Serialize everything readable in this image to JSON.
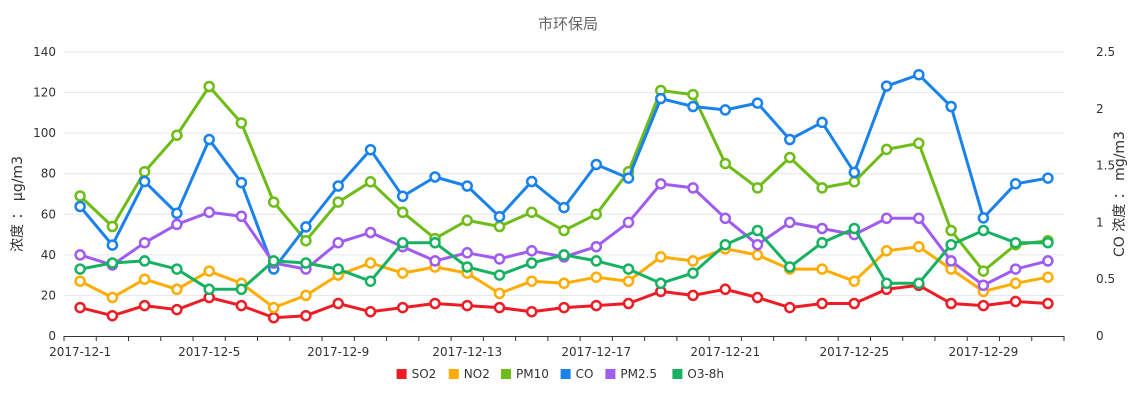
{
  "chart_data": {
    "type": "line",
    "title": "市环保局",
    "ylabel_left": "浓度 ： μg/m3",
    "ylabel_right": "CO 浓度 ： mg/m3",
    "ylim_left": [
      0,
      140
    ],
    "yticks_left": [
      0,
      20,
      40,
      60,
      80,
      100,
      120,
      140
    ],
    "ylim_right": [
      0,
      2.5
    ],
    "yticks_right": [
      "0",
      "0.5",
      "1",
      "1.5",
      "2",
      "2.5"
    ],
    "x": [
      "2017-12-1",
      "2017-12-2",
      "2017-12-3",
      "2017-12-4",
      "2017-12-5",
      "2017-12-6",
      "2017-12-7",
      "2017-12-8",
      "2017-12-9",
      "2017-12-10",
      "2017-12-11",
      "2017-12-12",
      "2017-12-13",
      "2017-12-14",
      "2017-12-15",
      "2017-12-16",
      "2017-12-17",
      "2017-12-18",
      "2017-12-19",
      "2017-12-20",
      "2017-12-21",
      "2017-12-22",
      "2017-12-23",
      "2017-12-24",
      "2017-12-25",
      "2017-12-26",
      "2017-12-27",
      "2017-12-28",
      "2017-12-29",
      "2017-12-30",
      "2017-12-31"
    ],
    "xtick_labels": [
      "2017-12-1",
      "2017-12-5",
      "2017-12-9",
      "2017-12-13",
      "2017-12-17",
      "2017-12-21",
      "2017-12-25",
      "2017-12-29"
    ],
    "grid": true,
    "legend_position": "bottom-center",
    "series": [
      {
        "name": "SO2",
        "axis": "left",
        "color": "#ee1c25",
        "values": [
          14,
          10,
          15,
          13,
          19,
          15,
          9,
          10,
          16,
          12,
          14,
          16,
          15,
          14,
          12,
          14,
          15,
          16,
          22,
          20,
          23,
          19,
          14,
          16,
          16,
          23,
          25,
          16,
          15,
          17,
          16
        ]
      },
      {
        "name": "NO2",
        "axis": "left",
        "color": "#ffac00",
        "values": [
          27,
          19,
          28,
          23,
          32,
          26,
          14,
          20,
          30,
          36,
          31,
          34,
          31,
          21,
          27,
          26,
          29,
          27,
          39,
          37,
          43,
          40,
          33,
          33,
          27,
          42,
          44,
          33,
          22,
          26,
          29
        ]
      },
      {
        "name": "PM10",
        "axis": "left",
        "color": "#6ebc18",
        "values": [
          69,
          54,
          81,
          99,
          123,
          105,
          66,
          47,
          66,
          76,
          61,
          48,
          57,
          54,
          61,
          52,
          60,
          81,
          121,
          119,
          85,
          73,
          88,
          73,
          76,
          92,
          95,
          52,
          32,
          45,
          47
        ]
      },
      {
        "name": "CO",
        "axis": "right",
        "color": "#1a82ec",
        "values": [
          1.14,
          0.8,
          1.36,
          1.08,
          1.73,
          1.35,
          0.59,
          0.96,
          1.32,
          1.64,
          1.23,
          1.4,
          1.32,
          1.05,
          1.36,
          1.13,
          1.51,
          1.39,
          2.09,
          2.02,
          1.99,
          2.05,
          1.73,
          1.88,
          1.44,
          2.2,
          2.3,
          2.02,
          1.04,
          1.34,
          1.39
        ]
      },
      {
        "name": "PM2.5",
        "axis": "left",
        "color": "#a05cf0",
        "values": [
          40,
          35,
          46,
          55,
          61,
          59,
          36,
          33,
          46,
          51,
          44,
          37,
          41,
          38,
          42,
          39,
          44,
          56,
          75,
          73,
          58,
          45,
          56,
          53,
          50,
          58,
          58,
          37,
          25,
          33,
          37
        ]
      },
      {
        "name": "O3-8h",
        "axis": "left",
        "color": "#17b261",
        "values": [
          33,
          36,
          37,
          33,
          23,
          23,
          37,
          36,
          33,
          27,
          46,
          46,
          34,
          30,
          36,
          40,
          37,
          33,
          26,
          31,
          45,
          52,
          34,
          46,
          53,
          26,
          26,
          45,
          52,
          46,
          46
        ]
      }
    ]
  }
}
